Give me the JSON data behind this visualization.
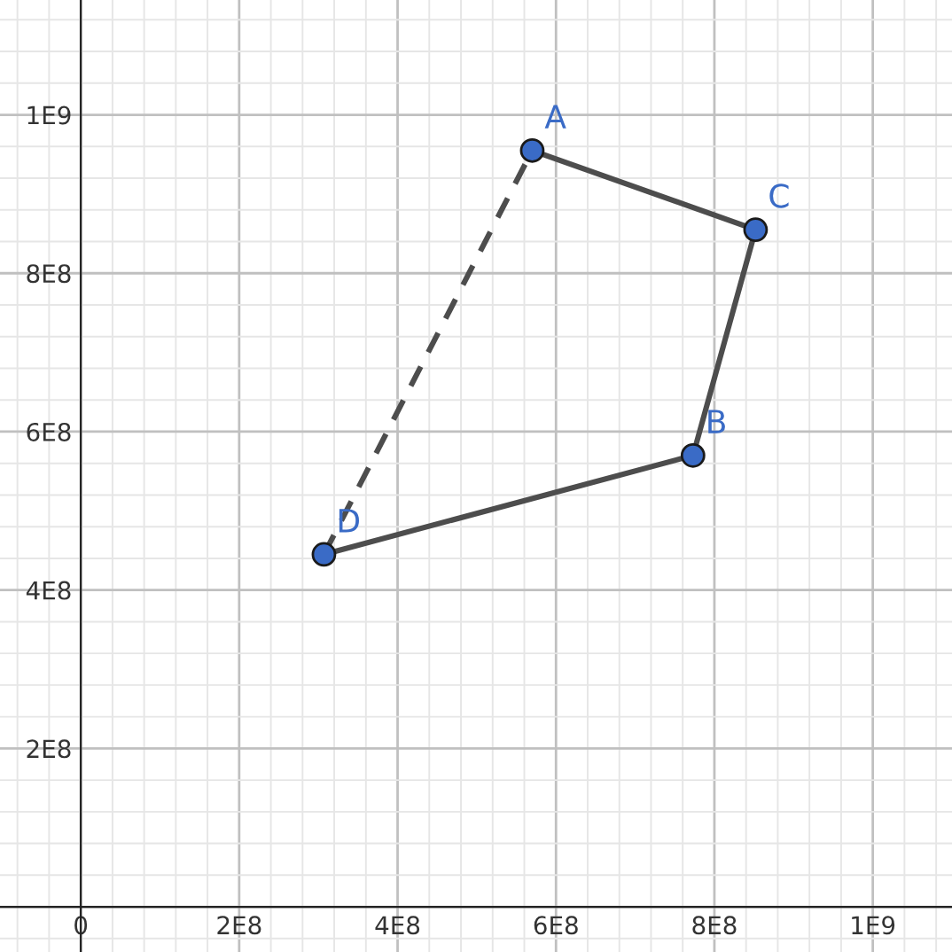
{
  "chart_data": {
    "type": "line",
    "xlim": [
      -102000000,
      1100000000
    ],
    "ylim": [
      -57000000,
      1145000000
    ],
    "xticks": [
      {
        "value": 0,
        "label": "0"
      },
      {
        "value": 200000000,
        "label": "2E8"
      },
      {
        "value": 400000000,
        "label": "4E8"
      },
      {
        "value": 600000000,
        "label": "6E8"
      },
      {
        "value": 800000000,
        "label": "8E8"
      },
      {
        "value": 1000000000,
        "label": "1E9"
      }
    ],
    "yticks": [
      {
        "value": 200000000,
        "label": "2E8"
      },
      {
        "value": 400000000,
        "label": "4E8"
      },
      {
        "value": 600000000,
        "label": "6E8"
      },
      {
        "value": 800000000,
        "label": "8E8"
      },
      {
        "value": 1000000000,
        "label": "1E9"
      }
    ],
    "grid": true,
    "series": [
      {
        "color": "#4d4d4d",
        "line_style": "solid",
        "x": [
          570000000,
          852000000,
          773000000,
          307000000
        ],
        "values": [
          955000000,
          855000000,
          570000000,
          445000000
        ]
      },
      {
        "color": "#4d4d4d",
        "line_style": "dashed",
        "x": [
          307000000,
          570000000
        ],
        "values": [
          445000000,
          955000000
        ]
      },
      {
        "type": "scatter",
        "color": "#3a6bc6",
        "marker": "circle",
        "x": [
          570000000,
          773000000,
          852000000,
          307000000
        ],
        "values": [
          955000000,
          570000000,
          855000000,
          445000000
        ]
      }
    ],
    "annotations": [
      {
        "text": "A",
        "x": 570000000,
        "y": 955000000
      },
      {
        "text": "B",
        "x": 773000000,
        "y": 570000000
      },
      {
        "text": "C",
        "x": 852000000,
        "y": 855000000
      },
      {
        "text": "D",
        "x": 307000000,
        "y": 445000000
      }
    ]
  }
}
